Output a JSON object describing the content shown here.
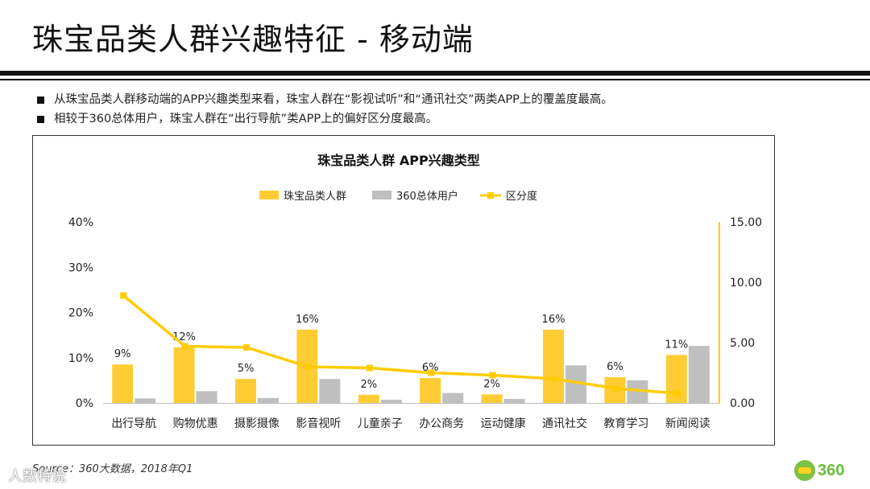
{
  "header": {
    "title": "珠宝品类人群兴趣特征 - 移动端"
  },
  "bullets": [
    "从珠宝品类人群移动端的APP兴趣类型来看，珠宝人群在“影视试听”和“通讯社交”两类APP上的覆盖度最高。",
    "相较于360总体用户，珠宝人群在“出行导航”类APP上的偏好区分度最高。"
  ],
  "footer": {
    "source": "Source：360大数据，2018年Q1",
    "watermark": "人数特说",
    "logo_text": "360"
  },
  "colors": {
    "jewelry": "#ffcc33",
    "overall": "#bfbfbf",
    "line": "#ffcc00"
  },
  "chart_data": {
    "type": "bar",
    "title": "珠宝品类人群 APP兴趣类型",
    "categories": [
      "出行导航",
      "购物优惠",
      "摄影摄像",
      "影音视听",
      "儿童亲子",
      "办公商务",
      "运动健康",
      "通讯社交",
      "教育学习",
      "新闻阅读"
    ],
    "series": [
      {
        "name": "珠宝品类人群",
        "type": "bar",
        "axis": "left",
        "values": [
          8.5,
          12.3,
          5.3,
          16.2,
          1.8,
          5.5,
          1.9,
          16.2,
          5.7,
          10.6
        ],
        "labels": [
          "9%",
          "12%",
          "5%",
          "16%",
          "2%",
          "6%",
          "2%",
          "16%",
          "6%",
          "11%"
        ]
      },
      {
        "name": "360总体用户",
        "type": "bar",
        "axis": "left",
        "values": [
          1.0,
          2.6,
          1.1,
          5.3,
          0.7,
          2.2,
          0.9,
          8.3,
          5.0,
          12.6
        ]
      },
      {
        "name": "区分度",
        "type": "line",
        "axis": "right",
        "values": [
          8.9,
          4.7,
          4.6,
          3.0,
          2.9,
          2.5,
          2.3,
          2.0,
          1.2,
          0.8
        ]
      }
    ],
    "left_axis": {
      "ylim": [
        0,
        40
      ],
      "ticks": [
        "0%",
        "10%",
        "20%",
        "30%",
        "40%"
      ]
    },
    "right_axis": {
      "ylim": [
        0,
        15
      ],
      "ticks": [
        "0.00",
        "5.00",
        "10.00",
        "15.00"
      ]
    },
    "legend_position": "top-center"
  }
}
